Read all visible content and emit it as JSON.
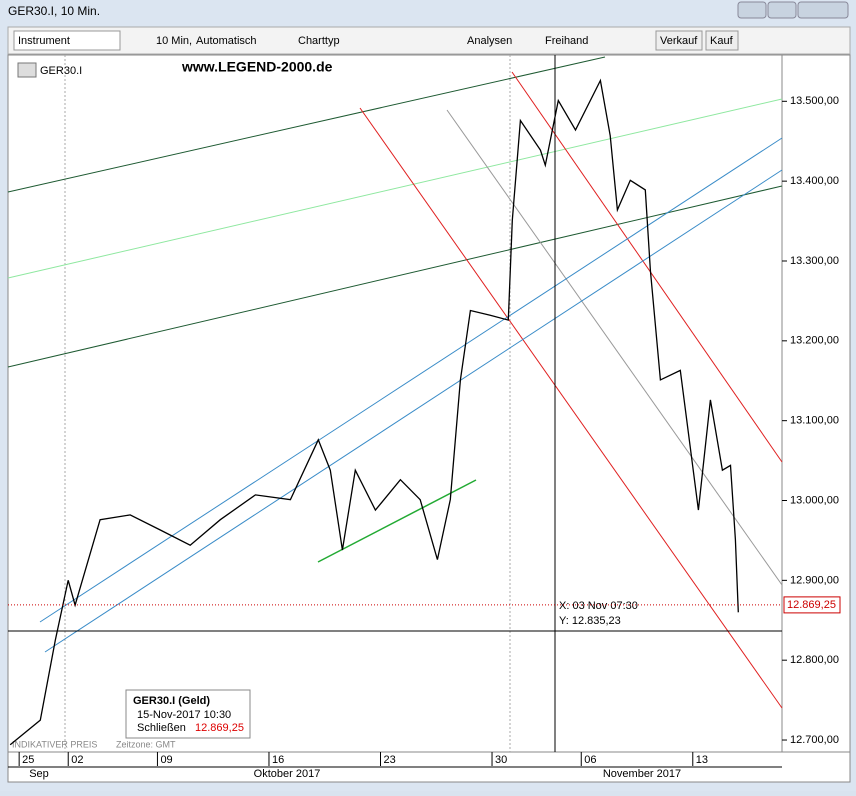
{
  "window": {
    "title": "GER30.I, 10 Min."
  },
  "toolbar": {
    "instrument": "Instrument",
    "interval": "10 Min,",
    "mode": "Automatisch",
    "chart_type": "Charttyp",
    "analyses": "Analysen",
    "freehand": "Freihand",
    "sell": "Verkauf",
    "buy": "Kauf"
  },
  "chart_data": {
    "type": "line",
    "title": "GER30.I",
    "watermark": "www.LEGEND-2000.de",
    "color": "#000000",
    "x": [
      -2.6,
      -1.25,
      -0.58,
      0,
      0.31,
      1.43,
      2.78,
      4.13,
      5.47,
      6.82,
      8.39,
      9.96,
      11.21,
      11.75,
      12.29,
      12.87,
      13.77,
      14.89,
      15.78,
      16.55,
      17.13,
      17.58,
      18.03,
      18.92,
      19.73,
      19.91,
      20.27,
      21.17,
      21.39,
      21.97,
      22.74,
      23.86,
      24.3,
      24.62,
      25.2,
      25.87,
      26.1,
      26.55,
      27.44,
      28.25,
      28.79,
      29.33,
      29.69,
      29.91,
      30.04
    ],
    "values": [
      12694,
      12725,
      12825,
      12900,
      12869,
      12976,
      12982,
      12963,
      12944,
      12976,
      13007,
      13001,
      13076,
      13038,
      12938,
      13038,
      12988,
      13026,
      13001,
      12926,
      13001,
      13151,
      13238,
      13232,
      13226,
      13351,
      13476,
      13439,
      13420,
      13501,
      13464,
      13526,
      13457,
      13364,
      13401,
      13389,
      13288,
      13151,
      13163,
      12988,
      13126,
      13038,
      13044,
      12951,
      12860
    ],
    "xlim": [
      -2.7,
      32
    ],
    "xticks": [
      {
        "value": -2.2,
        "label": "25"
      },
      {
        "value": 0,
        "label": "02"
      },
      {
        "value": 4,
        "label": "09"
      },
      {
        "value": 9,
        "label": "16"
      },
      {
        "value": 14,
        "label": "23"
      },
      {
        "value": 19,
        "label": "30"
      },
      {
        "value": 23,
        "label": "06"
      },
      {
        "value": 28,
        "label": "13"
      }
    ],
    "months": [
      "Sep",
      "Oktober 2017",
      "November 2017"
    ],
    "ylim": [
      12685,
      13558
    ],
    "yticks": [
      {
        "value": 12700,
        "label": "12.700,00"
      },
      {
        "value": 12800,
        "label": "12.800,00"
      },
      {
        "value": 12900,
        "label": "12.900,00"
      },
      {
        "value": 13000,
        "label": "13.000,00"
      },
      {
        "value": 13100,
        "label": "13.100,00"
      },
      {
        "value": 13200,
        "label": "13.200,00"
      },
      {
        "value": 13300,
        "label": "13.300,00"
      },
      {
        "value": 13400,
        "label": "13.400,00"
      },
      {
        "value": 13500,
        "label": "13.500,00"
      }
    ],
    "grid": false,
    "last_price": {
      "value": 12869.25,
      "label": "12.869,25"
    },
    "crosshair": {
      "x_label": "X: 03 Nov 07:30",
      "y_label": "Y: 12.835,23"
    },
    "info": {
      "title": "GER30.I (Geld)",
      "date": "15-Nov-2017 10:30",
      "close_label": "Schließen",
      "close": "12.869,25"
    },
    "footer": {
      "note": "INDIKATIVER PREIS",
      "timezone": "Zeitzone: GMT"
    }
  }
}
